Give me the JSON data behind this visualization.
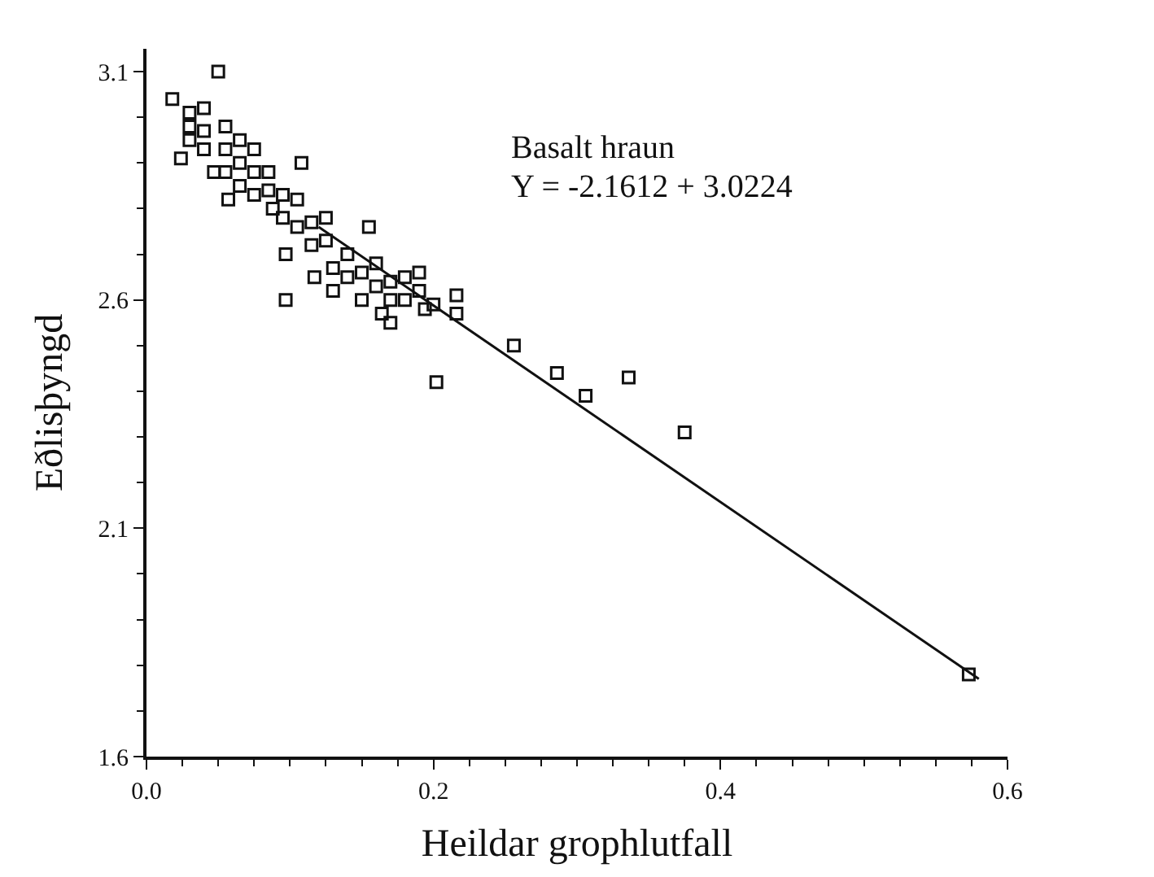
{
  "chart_data": {
    "type": "scatter",
    "xlabel": "Heildar grophlutfall",
    "ylabel": "Eðlisþyngd",
    "xlim": [
      0,
      0.6
    ],
    "ylim": [
      1.6,
      3.15
    ],
    "xticks": [
      {
        "value": 0,
        "label": "0.0"
      },
      0.2,
      0.4,
      0.6
    ],
    "yticks": [
      1.6,
      2.1,
      2.6,
      3.1
    ],
    "marker": "square",
    "annotations": [
      "Basalt hraun",
      "Y = -2.1612 + 3.0224"
    ],
    "series": [
      {
        "color": "#111111",
        "x": [
          0.018,
          0.05,
          0.024,
          0.047,
          0.057,
          0.088,
          0.097,
          0.097,
          0.117,
          0.155,
          0.108,
          0.164,
          0.194,
          0.216,
          0.216,
          0.256,
          0.286,
          0.202,
          0.306,
          0.336,
          0.375,
          0.573,
          0.03,
          0.03,
          0.03,
          0.04,
          0.04,
          0.04,
          0.055,
          0.055,
          0.055,
          0.065,
          0.065,
          0.065,
          0.075,
          0.075,
          0.075,
          0.085,
          0.085,
          0.095,
          0.095,
          0.105,
          0.105,
          0.115,
          0.115,
          0.125,
          0.125,
          0.13,
          0.13,
          0.14,
          0.14,
          0.15,
          0.15,
          0.16,
          0.16,
          0.17,
          0.17,
          0.17,
          0.18,
          0.18,
          0.19,
          0.19,
          0.2
        ],
        "values": [
          3.04,
          3.1,
          2.91,
          2.88,
          2.82,
          2.8,
          2.7,
          2.6,
          2.65,
          2.76,
          2.9,
          2.57,
          2.58,
          2.61,
          2.57,
          2.5,
          2.44,
          2.42,
          2.39,
          2.43,
          2.31,
          1.78,
          2.95,
          2.98,
          3.01,
          2.93,
          2.97,
          3.02,
          2.88,
          2.93,
          2.98,
          2.85,
          2.9,
          2.95,
          2.83,
          2.88,
          2.93,
          2.84,
          2.88,
          2.78,
          2.83,
          2.76,
          2.82,
          2.72,
          2.77,
          2.73,
          2.78,
          2.62,
          2.67,
          2.65,
          2.7,
          2.6,
          2.66,
          2.63,
          2.68,
          2.55,
          2.6,
          2.64,
          2.6,
          2.65,
          2.62,
          2.66,
          2.59
        ]
      },
      {
        "type": "line",
        "color": "#111111",
        "marker": "none",
        "x": [
          0.12,
          0.58
        ],
        "values": [
          2.76,
          1.77
        ]
      }
    ]
  }
}
